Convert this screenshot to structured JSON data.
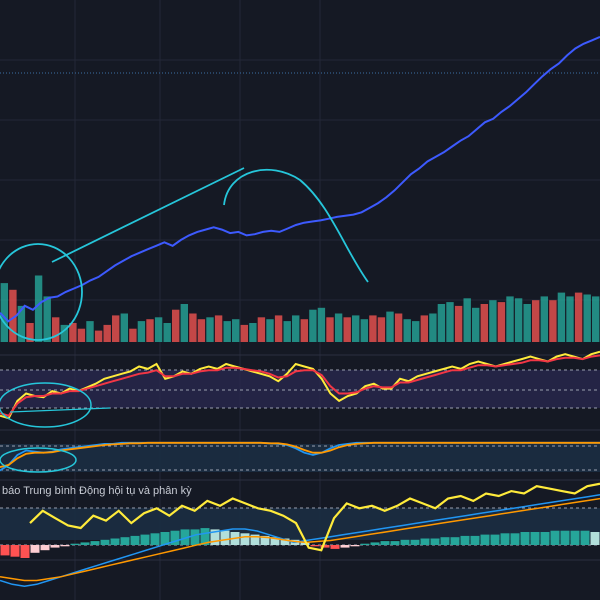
{
  "theme": {
    "background": "#151924",
    "grid": "#232837",
    "price_line": "#3d5afe",
    "annotation": "#26c6da",
    "bar_up": "#26a69a",
    "bar_down": "#ef5350",
    "rsi_fast": "#ffeb3b",
    "rsi_slow": "#f23645",
    "band_fill": "#2a2850",
    "stoch_k": "#2196f3",
    "stoch_d": "#ff9800",
    "macd_hist_up_strong": "#26a69a",
    "macd_hist_up_weak": "#b2dfdb",
    "macd_hist_down_strong": "#ff5252",
    "macd_hist_down_weak": "#ffcdd2",
    "dotted_level": "#3a6ea5"
  },
  "indicator_label": "báo Trung bình Động hội tụ và phân kỳ",
  "chart_data": [
    {
      "type": "line",
      "panel": "price",
      "name": "",
      "title": "",
      "series": [
        {
          "values": [
            30,
            15,
            25,
            42,
            35,
            48,
            56,
            58,
            66,
            72,
            78,
            86,
            92,
            102,
            112,
            120,
            128,
            134,
            140,
            146,
            152,
            146,
            156,
            164,
            170,
            174,
            178,
            174,
            168,
            170,
            164,
            166,
            170,
            172,
            170,
            176,
            182,
            186,
            188,
            190,
            193,
            196,
            198,
            200,
            204,
            212,
            220,
            230,
            242,
            256,
            270,
            280,
            292,
            300,
            308,
            318,
            328,
            336,
            348,
            360,
            366,
            378,
            388,
            400,
            412,
            426,
            440,
            452,
            462,
            476,
            488,
            496,
            502,
            508
          ]
        }
      ],
      "reference_level_dotted": 492,
      "annotations": [
        "ellipse-left",
        "trendline-upper",
        "arc-curve"
      ]
    },
    {
      "type": "bar",
      "panel": "volume",
      "values": [
        62,
        55,
        38,
        20,
        70,
        48,
        26,
        18,
        20,
        14,
        22,
        12,
        18,
        28,
        30,
        14,
        22,
        24,
        26,
        20,
        34,
        40,
        30,
        24,
        26,
        28,
        22,
        24,
        18,
        20,
        26,
        24,
        28,
        22,
        28,
        24,
        34,
        36,
        26,
        30,
        26,
        28,
        24,
        28,
        26,
        32,
        30,
        24,
        22,
        28,
        30,
        40,
        42,
        38,
        46,
        36,
        40,
        44,
        42,
        48,
        46,
        40,
        44,
        48,
        44,
        52,
        48,
        52,
        50,
        48
      ],
      "direction": [
        "up",
        "down",
        "up",
        "down",
        "up",
        "up",
        "down",
        "up",
        "down",
        "down",
        "up",
        "down",
        "down",
        "down",
        "up",
        "down",
        "up",
        "down",
        "up",
        "up",
        "down",
        "up",
        "down",
        "down",
        "up",
        "down",
        "up",
        "up",
        "down",
        "up",
        "down",
        "up",
        "down",
        "up",
        "up",
        "down",
        "up",
        "up",
        "down",
        "up",
        "down",
        "up",
        "up",
        "down",
        "down",
        "up",
        "down",
        "up",
        "up",
        "down",
        "up",
        "up",
        "up",
        "down",
        "up",
        "up",
        "down",
        "up",
        "down",
        "up",
        "up",
        "up",
        "down",
        "up",
        "down",
        "up",
        "up",
        "down",
        "up",
        "up"
      ]
    },
    {
      "type": "line",
      "panel": "rsi",
      "series": [
        {
          "name": "",
          "values": [
            40,
            38,
            52,
            58,
            56,
            55,
            60,
            58,
            62,
            60,
            63,
            66,
            70,
            72,
            74,
            76,
            80,
            78,
            82,
            70,
            72,
            76,
            74,
            78,
            80,
            78,
            82,
            80,
            78,
            76,
            74,
            72,
            68,
            74,
            82,
            80,
            78,
            70,
            58,
            52,
            56,
            58,
            64,
            66,
            62,
            62,
            70,
            68,
            72,
            74,
            76,
            78,
            80,
            78,
            82,
            84,
            82,
            80,
            82,
            84,
            86,
            88,
            86,
            84,
            88,
            90,
            88,
            86,
            90,
            92
          ]
        },
        {
          "name": "",
          "values": [
            42,
            40,
            50,
            55,
            56,
            56,
            58,
            58,
            60,
            60,
            62,
            64,
            66,
            68,
            70,
            72,
            74,
            75,
            77,
            72,
            72,
            74,
            74,
            76,
            77,
            77,
            79,
            79,
            78,
            77,
            76,
            74,
            71,
            72,
            76,
            77,
            77,
            73,
            64,
            58,
            58,
            59,
            62,
            64,
            63,
            63,
            67,
            67,
            69,
            71,
            73,
            75,
            77,
            77,
            79,
            81,
            81,
            80,
            81,
            82,
            83,
            85,
            85,
            84,
            86,
            87,
            87,
            86,
            88,
            89
          ]
        }
      ],
      "levels": [
        70,
        50,
        30
      ]
    },
    {
      "type": "line",
      "panel": "stochastic",
      "series": [
        {
          "name": "",
          "values": [
            30,
            40,
            58,
            66,
            64,
            62,
            64,
            68,
            70,
            72,
            74,
            76,
            78,
            78,
            80,
            80,
            80,
            80,
            80,
            80,
            80,
            80,
            80,
            80,
            80,
            80,
            80,
            80,
            80,
            80,
            80,
            79,
            78,
            76,
            70,
            62,
            58,
            62,
            70,
            76,
            78,
            80,
            80,
            80,
            80,
            80,
            80,
            80,
            80,
            80,
            80,
            80,
            80,
            80,
            80,
            80,
            80,
            80,
            80,
            80,
            80,
            80,
            80,
            80,
            80,
            80,
            80,
            80,
            80,
            80
          ]
        },
        {
          "name": "",
          "values": [
            36,
            40,
            52,
            60,
            62,
            62,
            63,
            66,
            68,
            70,
            72,
            74,
            76,
            77,
            78,
            79,
            79,
            80,
            80,
            80,
            80,
            80,
            80,
            80,
            80,
            80,
            80,
            80,
            80,
            80,
            80,
            79,
            79,
            77,
            73,
            67,
            62,
            62,
            66,
            72,
            76,
            78,
            79,
            80,
            80,
            80,
            80,
            80,
            80,
            80,
            80,
            80,
            80,
            80,
            80,
            80,
            80,
            80,
            80,
            80,
            80,
            80,
            80,
            80,
            80,
            80,
            80,
            80,
            80,
            80
          ]
        }
      ],
      "levels": [
        80,
        20
      ]
    },
    {
      "type": "bar",
      "panel": "macd",
      "histogram": [
        -8,
        -9,
        -10,
        -6,
        -4,
        -2,
        -1,
        1,
        2,
        3,
        4,
        5,
        6,
        7,
        8,
        9,
        10,
        11,
        12,
        12,
        13,
        12,
        11,
        10,
        9,
        8,
        7,
        6,
        5,
        4,
        2,
        -1,
        -2,
        -3,
        -2,
        -1,
        1,
        2,
        3,
        3,
        4,
        4,
        5,
        5,
        6,
        6,
        7,
        7,
        8,
        8,
        9,
        9,
        10,
        10,
        10,
        11,
        11,
        11,
        11,
        10
      ],
      "signal_lines": [
        {
          "name": "",
          "values": [
            -10,
            -14,
            -16,
            -14,
            -10,
            -6,
            -2,
            2,
            6,
            10,
            14,
            18,
            22,
            26,
            30,
            34,
            38,
            40,
            42,
            44,
            44,
            42,
            38,
            34,
            30,
            32,
            34,
            36,
            38,
            40,
            42,
            44,
            46,
            48,
            50,
            52,
            54,
            56,
            58,
            60,
            62,
            64,
            66,
            68,
            70,
            72,
            74,
            76,
            78,
            80
          ]
        },
        {
          "name": "",
          "values": [
            -6,
            -8,
            -10,
            -10,
            -8,
            -6,
            -3,
            0,
            3,
            6,
            9,
            12,
            15,
            18,
            21,
            24,
            27,
            30,
            32,
            34,
            36,
            36,
            35,
            33,
            31,
            30,
            31,
            32,
            34,
            36,
            38,
            40,
            42,
            44,
            46,
            48,
            50,
            52,
            54,
            56,
            58,
            60,
            62,
            64,
            66,
            68,
            70,
            72,
            74,
            76
          ]
        }
      ],
      "overlay": {
        "name": "",
        "values": [
          60,
          70,
          64,
          58,
          56,
          66,
          62,
          70,
          60,
          68,
          72,
          66,
          74,
          70,
          78,
          74,
          80,
          76,
          72,
          70,
          66,
          60,
          40,
          38,
          64,
          76,
          72,
          74,
          70,
          74,
          80,
          76,
          72,
          80,
          82,
          78,
          84,
          82,
          86,
          84,
          90,
          88,
          86,
          84,
          90,
          92
        ]
      }
    }
  ]
}
